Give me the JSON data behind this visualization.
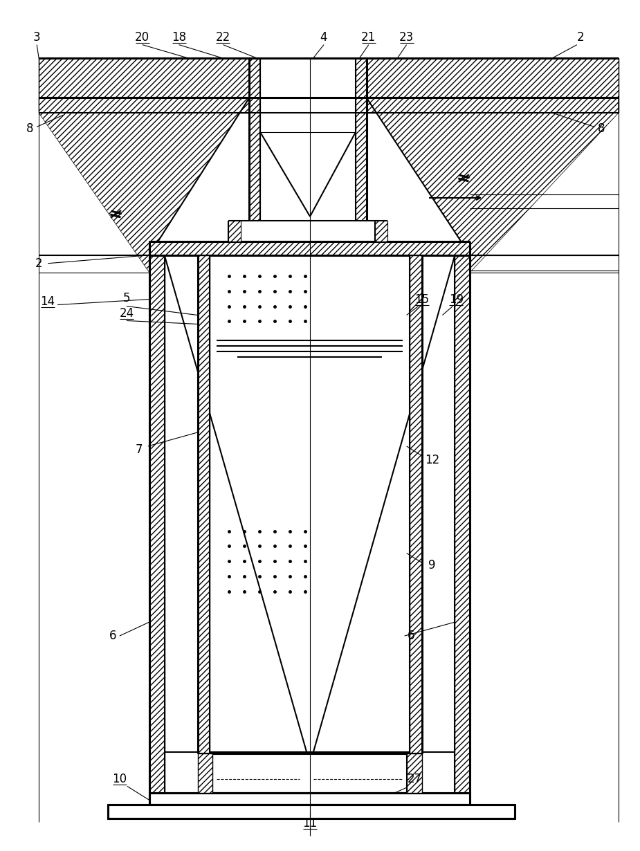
{
  "bg_color": "#ffffff",
  "lc": "#000000",
  "figsize": [
    9.25,
    12.3
  ],
  "dpi": 100,
  "lw_thin": 0.8,
  "lw_med": 1.5,
  "lw_thick": 2.2
}
